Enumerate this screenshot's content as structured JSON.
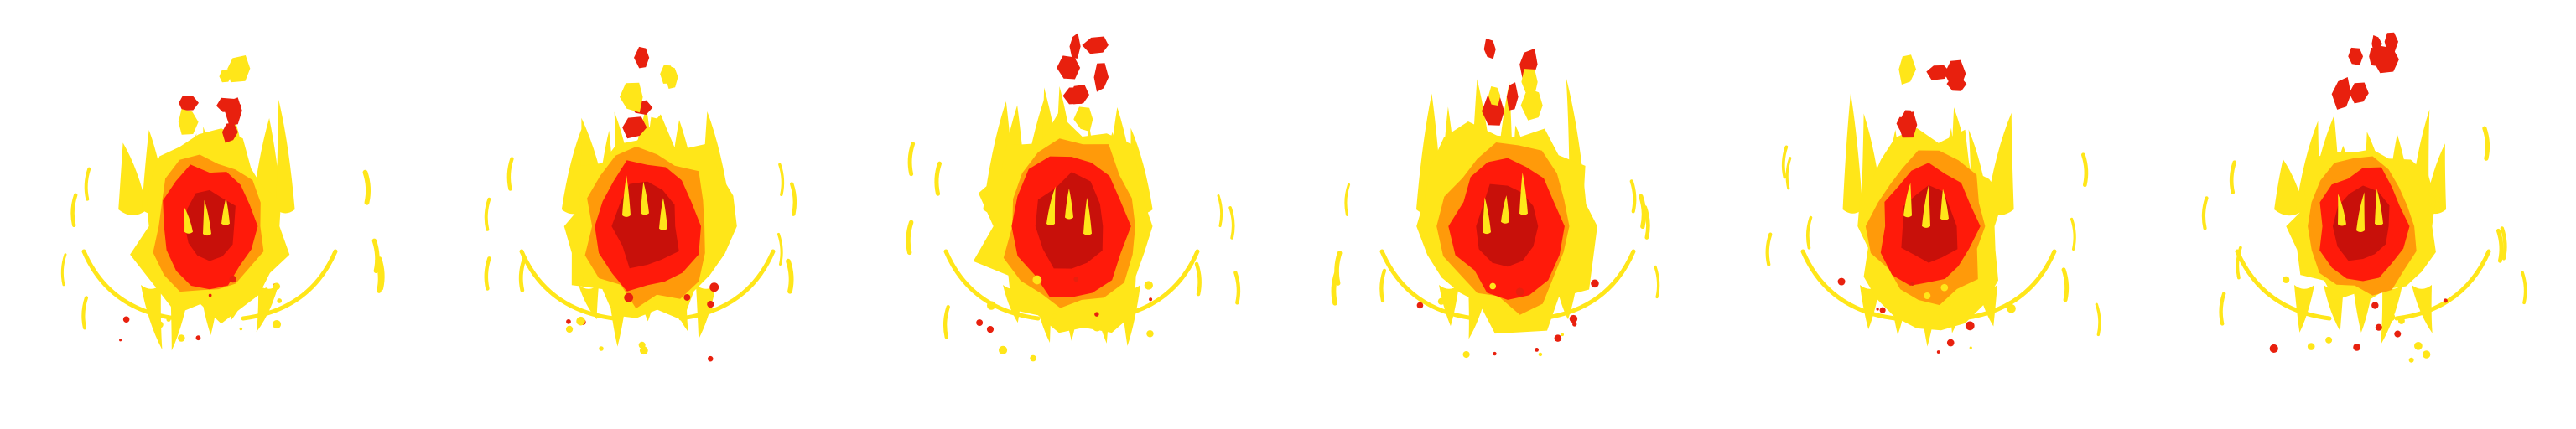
{
  "sprite_sheet": {
    "frame_count": 6,
    "colors": {
      "outer_flame": "#ffe619",
      "mid_flame": "#ff9a0a",
      "core": "#ff1a0a",
      "dark_core": "#c8100a",
      "ember": "#e8200e"
    },
    "frames": [
      {
        "index": 1,
        "core_lean": -6,
        "flare": 0.9,
        "lift": 0
      },
      {
        "index": 2,
        "core_lean": 4,
        "flare": 1.0,
        "lift": 6
      },
      {
        "index": 3,
        "core_lean": -2,
        "flare": 1.1,
        "lift": 10
      },
      {
        "index": 4,
        "core_lean": 6,
        "flare": 1.05,
        "lift": 14
      },
      {
        "index": 5,
        "core_lean": -4,
        "flare": 0.95,
        "lift": 18
      },
      {
        "index": 6,
        "core_lean": 2,
        "flare": 0.85,
        "lift": 22
      }
    ]
  }
}
